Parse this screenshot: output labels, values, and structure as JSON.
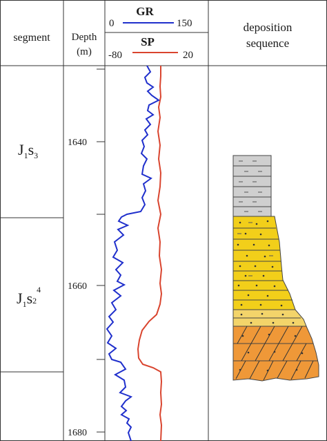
{
  "header": {
    "segment_label": "segment",
    "depth_label": "Depth",
    "depth_unit": "(m)",
    "gr": {
      "name": "GR",
      "min": "0",
      "max": "150"
    },
    "sp": {
      "name": "SP",
      "min": "-80",
      "max": "20"
    },
    "sequence_label_line1": "deposition",
    "sequence_label_line2": "sequence"
  },
  "segments": [
    {
      "main": "J",
      "sub1": "1",
      "mid": "s",
      "sub2": "3",
      "sup": ""
    },
    {
      "main": "J",
      "sub1": "1",
      "mid": "s",
      "sub2": "2",
      "sup": "4"
    }
  ],
  "depth_ticks": [
    "1640",
    "1660",
    "1680"
  ],
  "colors": {
    "gr_curve": "#1f2fcc",
    "sp_curve": "#d9442e",
    "mudstone": "#cfcfcf",
    "sandstone_yellow": "#f2cf1a",
    "sandstone_light": "#f3d46a",
    "sandstone_orange": "#ef9838",
    "grid": "#333333"
  }
}
